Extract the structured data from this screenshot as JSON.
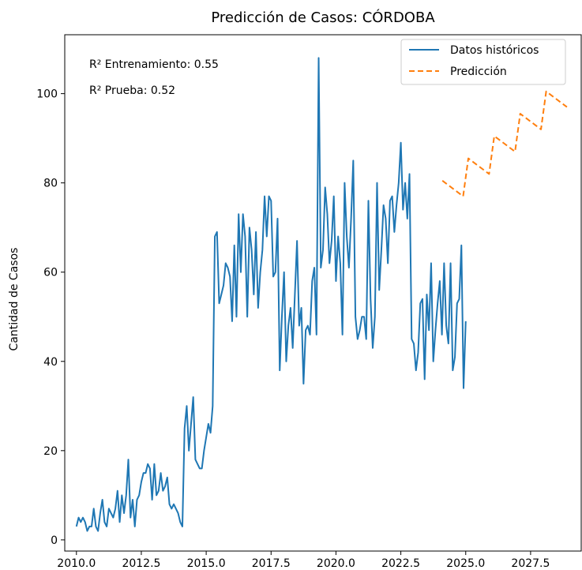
{
  "chart_data": {
    "type": "line",
    "title": "Predicción de Casos: CÓRDOBA",
    "xlabel": "",
    "ylabel": "Cantidad de Casos",
    "xlim": [
      2009.55,
      2029.45
    ],
    "ylim": [
      -2.5,
      113.2
    ],
    "xticks": [
      "2010.0",
      "2012.5",
      "2015.0",
      "2017.5",
      "2020.0",
      "2022.5",
      "2025.0",
      "2027.5"
    ],
    "xtick_values": [
      2010.0,
      2012.5,
      2015.0,
      2017.5,
      2020.0,
      2022.5,
      2025.0,
      2027.5
    ],
    "yticks": [
      "0",
      "20",
      "40",
      "60",
      "80",
      "100"
    ],
    "ytick_values": [
      0,
      20,
      40,
      60,
      80,
      100
    ],
    "grid": false,
    "legend_position": "top-right",
    "annotations": [
      "R² Entrenamiento: 0.55",
      "R² Prueba: 0.52"
    ],
    "series": [
      {
        "name": "Datos históricos",
        "color": "#1f77b4",
        "style": "solid",
        "x_start": 2010.0,
        "x_step": 0.083333,
        "values": [
          3,
          5,
          4,
          5,
          4,
          2,
          3,
          3,
          7,
          3,
          2,
          6,
          9,
          4,
          3,
          7,
          6,
          5,
          7,
          11,
          4,
          10,
          6,
          10,
          18,
          5,
          9,
          3,
          9,
          10,
          13,
          15,
          15,
          17,
          16,
          9,
          17,
          10,
          11,
          15,
          11,
          12,
          14,
          8,
          7,
          8,
          7,
          6,
          4,
          3,
          25,
          30,
          20,
          26,
          32,
          18,
          17,
          16,
          16,
          20,
          23,
          26,
          24,
          30,
          68,
          69,
          53,
          55,
          57,
          62,
          61,
          59,
          49,
          66,
          50,
          73,
          60,
          73,
          68,
          50,
          70,
          65,
          55,
          69,
          52,
          60,
          65,
          77,
          68,
          77,
          76,
          59,
          60,
          72,
          38,
          50,
          60,
          40,
          48,
          52,
          43,
          55,
          67,
          48,
          52,
          35,
          47,
          48,
          46,
          58,
          61,
          46,
          108,
          61,
          65,
          79,
          73,
          62,
          67,
          77,
          58,
          68,
          62,
          46,
          80,
          68,
          61,
          72,
          85,
          50,
          45,
          47,
          50,
          50,
          45,
          76,
          54,
          43,
          50,
          80,
          56,
          65,
          75,
          72,
          62,
          76,
          77,
          69,
          75,
          80,
          89,
          74,
          80,
          72,
          82,
          45,
          44,
          38,
          42,
          53,
          54,
          36,
          55,
          47,
          62,
          40,
          47,
          53,
          58,
          46,
          62,
          48,
          44,
          62,
          38,
          41,
          53,
          54,
          66,
          34,
          49
        ]
      },
      {
        "name": "Predicción",
        "color": "#ff7f0e",
        "style": "dashed",
        "x": [
          2024.1,
          2024.9,
          2025.1,
          2025.9,
          2026.1,
          2026.9,
          2027.1,
          2027.9,
          2028.1,
          2028.9
        ],
        "values": [
          80.5,
          77,
          85.5,
          82,
          90.5,
          87,
          95.5,
          92,
          100.5,
          97
        ]
      }
    ]
  }
}
